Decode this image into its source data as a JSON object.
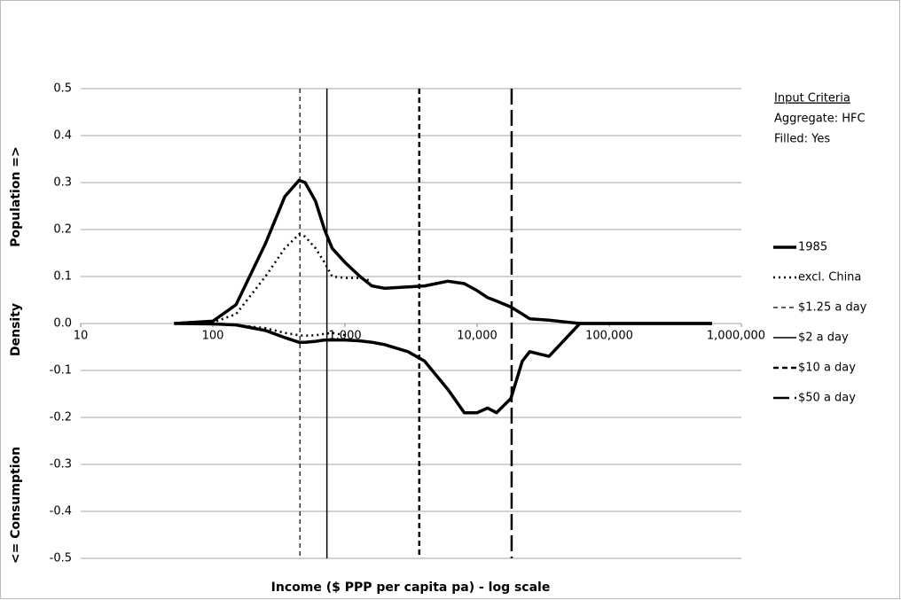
{
  "chart_data": {
    "type": "line",
    "log_x": true,
    "grid": true,
    "x_label": "Income ($ PPP per capita pa) - log scale",
    "y_label": [
      "<= Consumption",
      "Density",
      "Population =>"
    ],
    "xlim": [
      10,
      1000000
    ],
    "xticks": [
      10,
      100,
      {
        "value": 1000,
        "label": "1,000"
      },
      {
        "value": 10000,
        "label": "10,000"
      },
      {
        "value": 100000,
        "label": "100,000"
      },
      {
        "value": 1000000,
        "label": "1,000,000"
      }
    ],
    "ylim": [
      -0.5,
      0.5
    ],
    "yticks": [
      0.5,
      0.4,
      0.3,
      0.2,
      0.1,
      {
        "value": 0,
        "label": "0.0"
      },
      -0.1,
      -0.2,
      -0.3,
      -0.4,
      -0.5
    ],
    "x": [
      51,
      100,
      150,
      250,
      350,
      450,
      500,
      600,
      700,
      800,
      1000,
      1300,
      1600,
      2000,
      3000,
      4000,
      6000,
      8000,
      10000,
      12000,
      14000,
      18000,
      22000,
      25000,
      35000,
      60000,
      600000
    ],
    "series": [
      {
        "name": "1985",
        "color": "#000000",
        "style": "thick",
        "values": [
          0,
          0.005,
          0.04,
          0.17,
          0.27,
          0.305,
          0.3,
          0.26,
          0.2,
          0.16,
          0.13,
          0.1,
          0.08,
          0.075,
          0.078,
          0.08,
          0.09,
          0.085,
          0.07,
          0.055,
          0.048,
          0.035,
          0.02,
          0.01,
          0.007,
          0,
          0
        ],
        "consumption": [
          0,
          -0.001,
          -0.003,
          -0.015,
          -0.03,
          -0.04,
          -0.04,
          -0.038,
          -0.035,
          -0.035,
          -0.035,
          -0.037,
          -0.04,
          -0.045,
          -0.06,
          -0.08,
          -0.14,
          -0.19,
          -0.19,
          -0.18,
          -0.19,
          -0.16,
          -0.08,
          -0.06,
          -0.07,
          0,
          0
        ]
      },
      {
        "name": "excl. China",
        "color": "#000000",
        "style": "dotted",
        "values": [
          0,
          0.002,
          0.02,
          0.1,
          0.16,
          0.19,
          0.185,
          0.16,
          0.13,
          0.1,
          0.097,
          0.097,
          0.09,
          null,
          null,
          null,
          null,
          null,
          null,
          null,
          null,
          null,
          null,
          null,
          null,
          null,
          null
        ],
        "consumption": [
          0,
          -0.001,
          -0.003,
          -0.01,
          -0.02,
          -0.025,
          -0.026,
          -0.025,
          -0.022,
          -0.02,
          -0.025,
          null,
          null,
          null,
          null,
          null,
          null,
          null,
          null,
          null,
          null,
          null,
          null,
          null,
          null,
          null,
          null
        ]
      }
    ],
    "thresholds": [
      {
        "name": "$1.25 a day",
        "x": 456.25,
        "style": "dash-thin"
      },
      {
        "name": "$2 a day",
        "x": 730,
        "style": "solid-thin"
      },
      {
        "name": "$10 a day",
        "x": 3650,
        "style": "dash-mid"
      },
      {
        "name": "$50 a day",
        "x": 18250,
        "style": "dash-long"
      }
    ],
    "note": {
      "title": "Input Criteria",
      "lines": [
        "Aggregate: HFC",
        "Filled: Yes"
      ]
    }
  }
}
